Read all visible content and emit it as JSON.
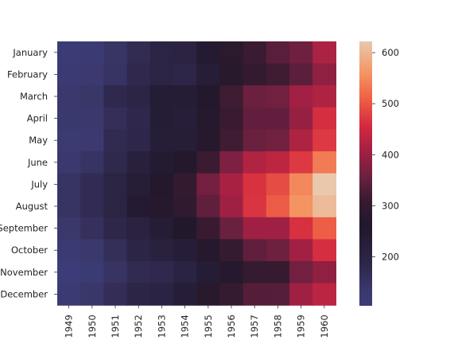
{
  "chart_data": {
    "type": "heatmap",
    "title": "",
    "xlabel": "",
    "ylabel": "",
    "x": [
      "1949",
      "1950",
      "1951",
      "1952",
      "1953",
      "1954",
      "1955",
      "1956",
      "1957",
      "1958",
      "1959",
      "1960"
    ],
    "y": [
      "January",
      "February",
      "March",
      "April",
      "May",
      "June",
      "July",
      "August",
      "September",
      "October",
      "November",
      "December"
    ],
    "values": [
      [
        112,
        115,
        145,
        171,
        196,
        204,
        242,
        284,
        315,
        340,
        360,
        417
      ],
      [
        118,
        126,
        150,
        180,
        196,
        188,
        233,
        277,
        301,
        318,
        342,
        391
      ],
      [
        132,
        141,
        178,
        193,
        236,
        235,
        267,
        317,
        356,
        362,
        406,
        419
      ],
      [
        129,
        135,
        163,
        181,
        235,
        227,
        269,
        313,
        348,
        348,
        396,
        461
      ],
      [
        121,
        125,
        172,
        183,
        229,
        234,
        270,
        318,
        355,
        363,
        420,
        472
      ],
      [
        135,
        149,
        178,
        218,
        243,
        264,
        315,
        374,
        422,
        435,
        472,
        535
      ],
      [
        148,
        170,
        199,
        230,
        264,
        302,
        364,
        413,
        465,
        491,
        548,
        622
      ],
      [
        148,
        170,
        199,
        242,
        272,
        293,
        347,
        405,
        467,
        505,
        559,
        606
      ],
      [
        136,
        158,
        184,
        209,
        237,
        259,
        312,
        355,
        404,
        404,
        463,
        508
      ],
      [
        119,
        133,
        162,
        191,
        211,
        229,
        274,
        306,
        347,
        359,
        407,
        461
      ],
      [
        104,
        114,
        146,
        172,
        180,
        203,
        237,
        271,
        305,
        310,
        362,
        390
      ],
      [
        118,
        140,
        166,
        194,
        201,
        229,
        278,
        306,
        336,
        337,
        405,
        432
      ]
    ],
    "colorbar": {
      "colormap": "rocket",
      "range": [
        104,
        622
      ],
      "ticks": [
        200,
        300,
        400,
        500,
        600
      ]
    },
    "grid": false
  }
}
